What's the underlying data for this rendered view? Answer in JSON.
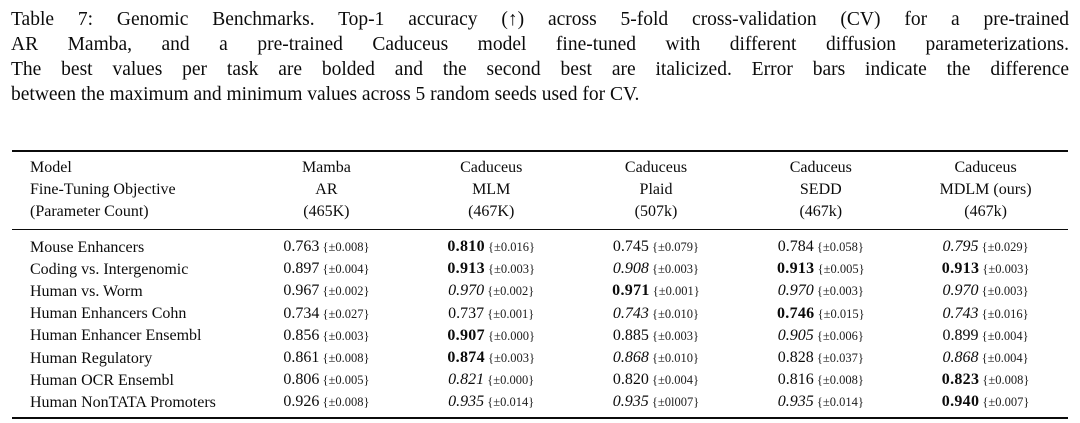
{
  "caption": {
    "lines": [
      "Table 7: Genomic Benchmarks. Top-1 accuracy (↑) across 5-fold cross-validation (CV) for a pre-trained",
      "AR Mamba, and a pre-trained Caduceus model fine-tuned with different diffusion parameterizations.",
      "The best values per task are bolded and the second best are italicized. Error bars indicate the difference",
      "between the maximum and minimum values across 5 random seeds used for CV."
    ]
  },
  "table": {
    "header_label": [
      "Model",
      "Fine-Tuning Objective",
      "(Parameter Count)"
    ],
    "columns": [
      {
        "lines": [
          "Mamba",
          "AR",
          "(465K)"
        ]
      },
      {
        "lines": [
          "Caduceus",
          "MLM",
          "(467K)"
        ]
      },
      {
        "lines": [
          "Caduceus",
          "Plaid",
          "(507k)"
        ]
      },
      {
        "lines": [
          "Caduceus",
          "SEDD",
          "(467k)"
        ]
      },
      {
        "lines": [
          "Caduceus",
          "MDLM (ours)",
          "(467k)"
        ]
      }
    ],
    "rows": [
      {
        "task": "Mouse Enhancers",
        "cells": [
          {
            "value": "0.763",
            "err": "{±0.008}",
            "style": "normal"
          },
          {
            "value": "0.810",
            "err": "{±0.016}",
            "style": "bold"
          },
          {
            "value": "0.745",
            "err": "{±0.079}",
            "style": "normal"
          },
          {
            "value": "0.784",
            "err": "{±0.058}",
            "style": "normal"
          },
          {
            "value": "0.795",
            "err": "{±0.029}",
            "style": "italic"
          }
        ]
      },
      {
        "task": "Coding vs. Intergenomic",
        "cells": [
          {
            "value": "0.897",
            "err": "{±0.004}",
            "style": "normal"
          },
          {
            "value": "0.913",
            "err": "{±0.003}",
            "style": "bold"
          },
          {
            "value": "0.908",
            "err": "{±0.003}",
            "style": "italic"
          },
          {
            "value": "0.913",
            "err": "{±0.005}",
            "style": "bold"
          },
          {
            "value": "0.913",
            "err": "{±0.003}",
            "style": "bold"
          }
        ]
      },
      {
        "task": "Human vs. Worm",
        "cells": [
          {
            "value": "0.967",
            "err": "{±0.002}",
            "style": "normal"
          },
          {
            "value": "0.970",
            "err": "{±0.002}",
            "style": "italic"
          },
          {
            "value": "0.971",
            "err": "{±0.001}",
            "style": "bold"
          },
          {
            "value": "0.970",
            "err": "{±0.003}",
            "style": "italic"
          },
          {
            "value": "0.970",
            "err": "{±0.003}",
            "style": "italic"
          }
        ]
      },
      {
        "task": "Human Enhancers Cohn",
        "cells": [
          {
            "value": "0.734",
            "err": "{±0.027}",
            "style": "normal"
          },
          {
            "value": "0.737",
            "err": "{±0.001}",
            "style": "normal"
          },
          {
            "value": "0.743",
            "err": "{±0.010}",
            "style": "italic"
          },
          {
            "value": "0.746",
            "err": "{±0.015}",
            "style": "bold"
          },
          {
            "value": "0.743",
            "err": "{±0.016}",
            "style": "italic"
          }
        ]
      },
      {
        "task": "Human Enhancer Ensembl",
        "cells": [
          {
            "value": "0.856",
            "err": "{±0.003}",
            "style": "normal"
          },
          {
            "value": "0.907",
            "err": "{±0.000}",
            "style": "bold"
          },
          {
            "value": "0.885",
            "err": "{±0.003}",
            "style": "normal"
          },
          {
            "value": "0.905",
            "err": "{±0.006}",
            "style": "italic"
          },
          {
            "value": "0.899",
            "err": "{±0.004}",
            "style": "normal"
          }
        ]
      },
      {
        "task": "Human Regulatory",
        "cells": [
          {
            "value": "0.861",
            "err": "{±0.008}",
            "style": "normal"
          },
          {
            "value": "0.874",
            "err": "{±0.003}",
            "style": "bold"
          },
          {
            "value": "0.868",
            "err": "{±0.010}",
            "style": "italic"
          },
          {
            "value": "0.828",
            "err": "{±0.037}",
            "style": "normal"
          },
          {
            "value": "0.868",
            "err": "{±0.004}",
            "style": "italic"
          }
        ]
      },
      {
        "task": "Human OCR Ensembl",
        "cells": [
          {
            "value": "0.806",
            "err": "{±0.005}",
            "style": "normal"
          },
          {
            "value": "0.821",
            "err": "{±0.000}",
            "style": "italic"
          },
          {
            "value": "0.820",
            "err": "{±0.004}",
            "style": "normal"
          },
          {
            "value": "0.816",
            "err": "{±0.008}",
            "style": "normal"
          },
          {
            "value": "0.823",
            "err": "{±0.008}",
            "style": "bold"
          }
        ]
      },
      {
        "task": "Human NonTATA Promoters",
        "cells": [
          {
            "value": "0.926",
            "err": "{±0.008}",
            "style": "normal"
          },
          {
            "value": "0.935",
            "err": "{±0.014}",
            "style": "italic"
          },
          {
            "value": "0.935",
            "err": "{±0l007}",
            "style": "italic"
          },
          {
            "value": "0.935",
            "err": "{±0.014}",
            "style": "italic"
          },
          {
            "value": "0.940",
            "err": "{±0.007}",
            "style": "bold"
          }
        ]
      }
    ]
  }
}
